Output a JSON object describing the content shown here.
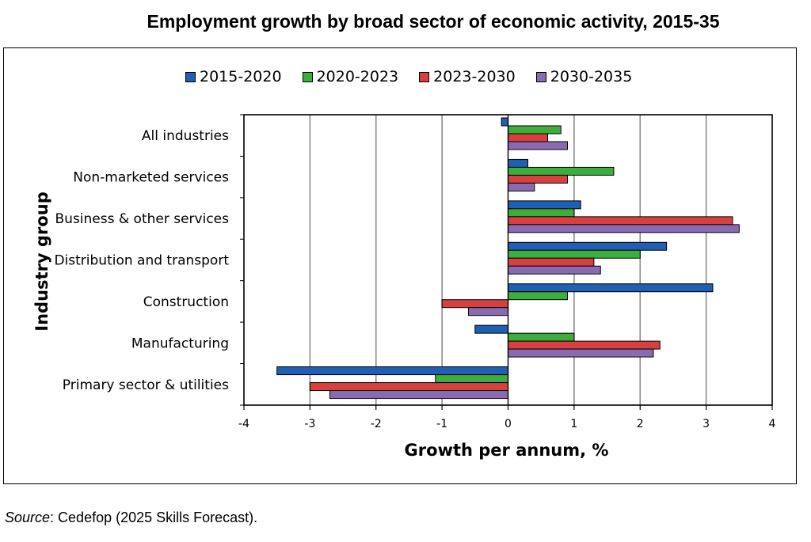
{
  "chart_data": {
    "type": "bar",
    "orientation": "horizontal",
    "title": "Employment growth by broad sector of economic activity, 2015-35",
    "xlabel": "Growth per annum, %",
    "ylabel": "Industry group",
    "xlim": [
      -4,
      4
    ],
    "xticks": [
      "-4",
      "-3",
      "-2",
      "-1",
      "0",
      "1",
      "2",
      "3",
      "4"
    ],
    "xtick_values": [
      -4,
      -3,
      -2,
      -1,
      0,
      1,
      2,
      3,
      4
    ],
    "grid": "vertical",
    "legend_position": "top",
    "categories": [
      "All industries",
      "Non-marketed services",
      "Business & other services",
      "Distribution and transport",
      "Construction",
      "Manufacturing",
      "Primary sector & utilities"
    ],
    "series": [
      {
        "name": "2015-2020",
        "color": "#1f5fb4",
        "values": [
          -0.1,
          0.3,
          1.1,
          2.4,
          3.1,
          -0.5,
          -3.5
        ]
      },
      {
        "name": "2020-2023",
        "color": "#3cae3c",
        "values": [
          0.8,
          1.6,
          1.0,
          2.0,
          0.9,
          1.0,
          -1.1
        ]
      },
      {
        "name": "2023-2030",
        "color": "#d84040",
        "values": [
          0.6,
          0.9,
          3.4,
          1.3,
          -1.0,
          2.3,
          -3.0
        ]
      },
      {
        "name": "2030-2035",
        "color": "#8a6bb1",
        "values": [
          0.9,
          0.4,
          3.5,
          1.4,
          -0.6,
          2.2,
          -2.7
        ]
      }
    ]
  },
  "source": {
    "label": "Source",
    "text": ": Cedefop (2025 Skills Forecast)."
  }
}
